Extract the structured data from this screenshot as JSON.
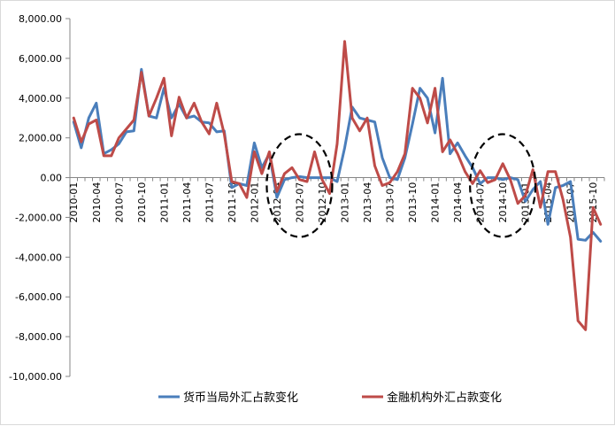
{
  "chart_data": {
    "type": "line",
    "title": "",
    "xlabel": "",
    "ylabel": "",
    "ylim": [
      -10000,
      8000
    ],
    "yticks": [
      "8,000.00",
      "6,000.00",
      "4,000.00",
      "2,000.00",
      "0.00",
      "-2,000.00",
      "-4,000.00",
      "-6,000.00",
      "-8,000.00",
      "-10,000.00"
    ],
    "grid": false,
    "legend_position": "bottom",
    "x_labels": [
      "2010-01",
      "2010-04",
      "2010-07",
      "2010-10",
      "2011-01",
      "2011-04",
      "2011-07",
      "2011-10",
      "2012-01",
      "2012-04",
      "2012-07",
      "2012-10",
      "2013-01",
      "2013-04",
      "2013-07",
      "2013-10",
      "2014-01",
      "2014-04",
      "2014-07",
      "2014-10",
      "2015-01",
      "2015-04",
      "2015-07",
      "2015-10"
    ],
    "x": [
      "2010-01",
      "2010-02",
      "2010-03",
      "2010-04",
      "2010-05",
      "2010-06",
      "2010-07",
      "2010-08",
      "2010-09",
      "2010-10",
      "2010-11",
      "2010-12",
      "2011-01",
      "2011-02",
      "2011-03",
      "2011-04",
      "2011-05",
      "2011-06",
      "2011-07",
      "2011-08",
      "2011-09",
      "2011-10",
      "2011-11",
      "2011-12",
      "2012-01",
      "2012-02",
      "2012-03",
      "2012-04",
      "2012-05",
      "2012-06",
      "2012-07",
      "2012-08",
      "2012-09",
      "2012-10",
      "2012-11",
      "2012-12",
      "2013-01",
      "2013-02",
      "2013-03",
      "2013-04",
      "2013-05",
      "2013-06",
      "2013-07",
      "2013-08",
      "2013-09",
      "2013-10",
      "2013-11",
      "2013-12",
      "2014-01",
      "2014-02",
      "2014-03",
      "2014-04",
      "2014-05",
      "2014-06",
      "2014-07",
      "2014-08",
      "2014-09",
      "2014-10",
      "2014-11",
      "2014-12",
      "2015-01",
      "2015-02",
      "2015-03",
      "2015-04",
      "2015-05",
      "2015-06",
      "2015-07",
      "2015-08",
      "2015-09",
      "2015-10",
      "2015-11"
    ],
    "series": [
      {
        "name": "货币当局外汇占款变化",
        "color": "#4a7ebb",
        "values": [
          2800,
          1500,
          3000,
          3750,
          1200,
          1400,
          1700,
          2300,
          2350,
          5450,
          3100,
          3000,
          4500,
          3000,
          3700,
          3000,
          3100,
          2800,
          2750,
          2300,
          2350,
          -500,
          -300,
          -400,
          1750,
          500,
          1200,
          -1000,
          -100,
          0,
          50,
          0,
          0,
          0,
          0,
          -200,
          1500,
          3550,
          3000,
          2900,
          2800,
          1000,
          0,
          -100,
          1000,
          2700,
          4500,
          4000,
          2250,
          5000,
          1200,
          1750,
          1100,
          500,
          -300,
          0,
          0,
          -100,
          0,
          -100,
          -1200,
          -600,
          -200,
          -2350,
          -500,
          -400,
          -200,
          -3100,
          -3150,
          -2750,
          -3200
        ]
      },
      {
        "name": "金融机构外汇占款变化",
        "color": "#be4b48",
        "values": [
          3000,
          1800,
          2700,
          2900,
          1100,
          1100,
          2000,
          2450,
          2900,
          5300,
          3100,
          4000,
          5000,
          2100,
          4050,
          3000,
          3750,
          2800,
          2200,
          3750,
          2200,
          -200,
          -300,
          -1000,
          1300,
          200,
          1300,
          -700,
          200,
          500,
          -100,
          -200,
          1300,
          -100,
          -800,
          1700,
          6850,
          3000,
          2350,
          3000,
          600,
          -400,
          -250,
          300,
          1200,
          4500,
          4000,
          2750,
          4500,
          1300,
          1900,
          1200,
          300,
          -300,
          350,
          -250,
          -100,
          700,
          -100,
          -1300,
          -900,
          400,
          -1500,
          300,
          300,
          -1100,
          -3000,
          -7200,
          -7650,
          -1500,
          -2350
        ]
      }
    ],
    "annotations": [
      {
        "type": "dashed-ellipse",
        "around": "2012-07"
      },
      {
        "type": "dashed-ellipse",
        "around": "2014-10"
      }
    ]
  }
}
